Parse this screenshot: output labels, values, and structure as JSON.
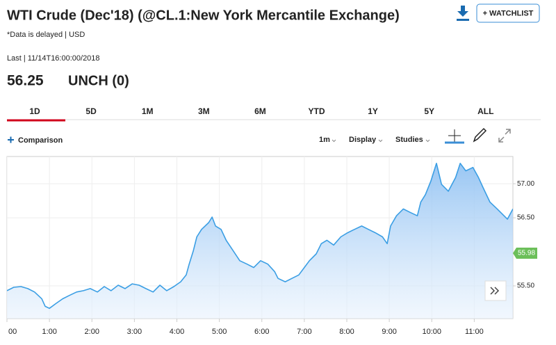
{
  "header": {
    "title": "WTI Crude (Dec'18) (@CL.1:New York Mercantile Exchange)",
    "note": "*Data is delayed | USD",
    "last": "Last | 11/14T16:00:00/2018",
    "price": "56.25",
    "change": "UNCH (0)",
    "watchlist": "+ WATCHLIST"
  },
  "tabs": [
    "1D",
    "5D",
    "1M",
    "3M",
    "6M",
    "YTD",
    "1Y",
    "5Y",
    "ALL"
  ],
  "toolbar": {
    "comparison": "Comparison",
    "interval": "1m",
    "display": "Display",
    "studies": "Studies"
  },
  "chart_data": {
    "type": "area",
    "color": "#3a9ee4",
    "grid": true,
    "x": [
      0,
      0.16,
      0.33,
      0.49,
      0.65,
      0.82,
      0.9,
      1.0,
      1.15,
      1.31,
      1.47,
      1.64,
      1.8,
      1.96,
      2.13,
      2.29,
      2.45,
      2.62,
      2.78,
      2.95,
      3.11,
      3.27,
      3.44,
      3.6,
      3.76,
      3.93,
      4.09,
      4.22,
      4.29,
      4.39,
      4.47,
      4.58,
      4.75,
      4.83,
      4.91,
      5.04,
      5.16,
      5.32,
      5.48,
      5.65,
      5.81,
      5.97,
      6.14,
      6.3,
      6.38,
      6.55,
      6.71,
      6.87,
      7.0,
      7.12,
      7.28,
      7.4,
      7.53,
      7.69,
      7.86,
      8.02,
      8.18,
      8.35,
      8.51,
      8.67,
      8.84,
      8.95,
      9.03,
      9.17,
      9.33,
      9.49,
      9.66,
      9.74,
      9.85,
      9.98,
      10.11,
      10.23,
      10.39,
      10.56,
      10.67,
      10.8,
      10.97,
      11.1,
      11.21,
      11.37,
      11.54,
      11.7,
      11.78,
      11.91
    ],
    "values": [
      55.43,
      55.48,
      55.49,
      55.46,
      55.41,
      55.31,
      55.2,
      55.17,
      55.24,
      55.31,
      55.36,
      55.41,
      55.43,
      55.46,
      55.41,
      55.49,
      55.43,
      55.51,
      55.46,
      55.53,
      55.51,
      55.46,
      55.41,
      55.51,
      55.43,
      55.49,
      55.56,
      55.66,
      55.82,
      56.02,
      56.22,
      56.33,
      56.43,
      56.51,
      56.38,
      56.33,
      56.17,
      56.02,
      55.87,
      55.82,
      55.77,
      55.87,
      55.82,
      55.71,
      55.61,
      55.56,
      55.61,
      55.66,
      55.77,
      55.87,
      55.97,
      56.12,
      56.17,
      56.1,
      56.22,
      56.28,
      56.33,
      56.38,
      56.33,
      56.28,
      56.22,
      56.12,
      56.38,
      56.53,
      56.63,
      56.58,
      56.53,
      56.73,
      56.84,
      57.04,
      57.3,
      56.99,
      56.89,
      57.09,
      57.3,
      57.19,
      57.24,
      57.09,
      56.94,
      56.73,
      56.63,
      56.53,
      56.48,
      56.63
    ],
    "xlim": [
      0,
      11.91
    ],
    "xticks": [
      {
        "value": 0,
        "label": "00"
      },
      {
        "value": 1,
        "label": "1:00"
      },
      {
        "value": 2,
        "label": "2:00"
      },
      {
        "value": 3,
        "label": "3:00"
      },
      {
        "value": 4,
        "label": "4:00"
      },
      {
        "value": 5,
        "label": "5:00"
      },
      {
        "value": 6,
        "label": "6:00"
      },
      {
        "value": 7,
        "label": "7:00"
      },
      {
        "value": 8,
        "label": "8:00"
      },
      {
        "value": 9,
        "label": "9:00"
      },
      {
        "value": 10,
        "label": "10:00"
      },
      {
        "value": 11,
        "label": "11:00"
      }
    ],
    "ylim": [
      55.02,
      57.4
    ],
    "yticks": [
      {
        "value": 55.5,
        "label": "55.50"
      },
      {
        "value": 56.5,
        "label": "56.50"
      },
      {
        "value": 57,
        "label": "57.00"
      }
    ],
    "last_label": 55.98,
    "last_color": "#6cbf5a"
  }
}
